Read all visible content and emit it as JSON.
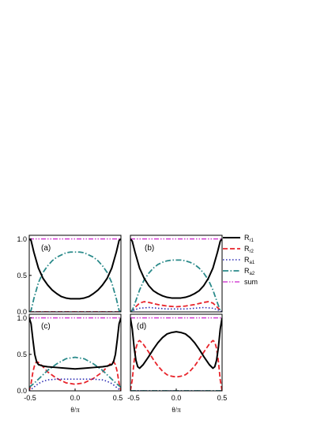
{
  "chart_data": {
    "type": "line",
    "xlabel": "θ/π",
    "x_ticks": [
      "-0.5",
      "0.0",
      "0.5"
    ],
    "y_ticks": [
      "0.0",
      "0.5",
      "1.0"
    ],
    "xlim": [
      -0.5,
      0.5
    ],
    "ylim": [
      0,
      1.05
    ],
    "legend": {
      "placement": "right",
      "entries": [
        {
          "key": "Rr1",
          "main": "R",
          "sub": "r1",
          "color": "#000000",
          "dash": "none",
          "width": 2
        },
        {
          "key": "Rr2",
          "main": "R",
          "sub": "r2",
          "color": "#e8232a",
          "dash": "6,3",
          "width": 1.8
        },
        {
          "key": "Ra1",
          "main": "R",
          "sub": "a1",
          "color": "#2d2db4",
          "dash": "1.5,2.5",
          "width": 1.6
        },
        {
          "key": "Ra2",
          "main": "R",
          "sub": "a2",
          "color": "#2a8a8a",
          "dash": "7,2.5,1.5,2.5",
          "width": 1.8
        },
        {
          "key": "sum",
          "main": "sum",
          "sub": "",
          "color": "#cc22cc",
          "dash": "6,2,1.5,2,1.5,2",
          "width": 1.2
        }
      ]
    },
    "panels": [
      {
        "label": "(a)",
        "series": {
          "Rr1": {
            "x": [
              -0.5,
              -0.48,
              -0.45,
              -0.4,
              -0.35,
              -0.3,
              -0.25,
              -0.2,
              -0.15,
              -0.1,
              -0.05,
              0,
              0.05,
              0.1,
              0.15,
              0.2,
              0.25,
              0.3,
              0.35,
              0.4,
              0.45,
              0.48,
              0.5
            ],
            "y": [
              1.0,
              0.98,
              0.82,
              0.6,
              0.46,
              0.37,
              0.3,
              0.25,
              0.21,
              0.19,
              0.18,
              0.18,
              0.18,
              0.19,
              0.21,
              0.25,
              0.3,
              0.37,
              0.46,
              0.6,
              0.82,
              0.98,
              1.0
            ]
          },
          "Rr2": {
            "x": [
              -0.5,
              0.5
            ],
            "y": [
              0.0,
              0.0
            ]
          },
          "Ra1": {
            "x": [
              -0.5,
              0.5
            ],
            "y": [
              0.0,
              0.0
            ]
          },
          "Ra2": {
            "x": [
              -0.5,
              -0.48,
              -0.45,
              -0.4,
              -0.35,
              -0.3,
              -0.25,
              -0.2,
              -0.15,
              -0.1,
              -0.05,
              0,
              0.05,
              0.1,
              0.15,
              0.2,
              0.25,
              0.3,
              0.35,
              0.4,
              0.45,
              0.48,
              0.5
            ],
            "y": [
              0.0,
              0.02,
              0.18,
              0.4,
              0.54,
              0.63,
              0.7,
              0.75,
              0.78,
              0.81,
              0.82,
              0.82,
              0.82,
              0.81,
              0.78,
              0.75,
              0.7,
              0.63,
              0.54,
              0.4,
              0.18,
              0.02,
              0.0
            ]
          },
          "sum": {
            "x": [
              -0.5,
              0.5
            ],
            "y": [
              1.0,
              1.0
            ]
          }
        }
      },
      {
        "label": "(b)",
        "series": {
          "Rr1": {
            "x": [
              -0.5,
              -0.48,
              -0.45,
              -0.4,
              -0.35,
              -0.3,
              -0.25,
              -0.2,
              -0.15,
              -0.1,
              -0.05,
              0,
              0.05,
              0.1,
              0.15,
              0.2,
              0.25,
              0.3,
              0.35,
              0.4,
              0.45,
              0.48,
              0.5
            ],
            "y": [
              1.0,
              0.97,
              0.82,
              0.6,
              0.46,
              0.36,
              0.29,
              0.25,
              0.22,
              0.2,
              0.19,
              0.19,
              0.19,
              0.2,
              0.22,
              0.25,
              0.29,
              0.36,
              0.46,
              0.6,
              0.82,
              0.97,
              1.0
            ]
          },
          "Rr2": {
            "x": [
              -0.5,
              -0.45,
              -0.4,
              -0.35,
              -0.3,
              -0.2,
              -0.1,
              0,
              0.1,
              0.2,
              0.3,
              0.35,
              0.4,
              0.45,
              0.5
            ],
            "y": [
              0.0,
              0.06,
              0.12,
              0.14,
              0.13,
              0.1,
              0.08,
              0.07,
              0.08,
              0.1,
              0.13,
              0.14,
              0.12,
              0.06,
              0.0
            ]
          },
          "Ra1": {
            "x": [
              -0.5,
              -0.45,
              -0.4,
              -0.3,
              -0.2,
              -0.1,
              0,
              0.1,
              0.2,
              0.3,
              0.4,
              0.45,
              0.5
            ],
            "y": [
              0.0,
              0.03,
              0.05,
              0.06,
              0.05,
              0.04,
              0.04,
              0.04,
              0.05,
              0.06,
              0.05,
              0.03,
              0.0
            ]
          },
          "Ra2": {
            "x": [
              -0.5,
              -0.48,
              -0.45,
              -0.4,
              -0.35,
              -0.3,
              -0.25,
              -0.2,
              -0.15,
              -0.1,
              -0.05,
              0,
              0.05,
              0.1,
              0.15,
              0.2,
              0.25,
              0.3,
              0.35,
              0.4,
              0.45,
              0.48,
              0.5
            ],
            "y": [
              0.0,
              0.02,
              0.12,
              0.3,
              0.44,
              0.53,
              0.6,
              0.65,
              0.68,
              0.7,
              0.71,
              0.71,
              0.71,
              0.7,
              0.68,
              0.65,
              0.6,
              0.53,
              0.44,
              0.3,
              0.12,
              0.02,
              0.0
            ]
          },
          "sum": {
            "x": [
              -0.5,
              0.5
            ],
            "y": [
              1.0,
              1.0
            ]
          }
        }
      },
      {
        "label": "(c)",
        "series": {
          "Rr1": {
            "x": [
              -0.5,
              -0.48,
              -0.46,
              -0.44,
              -0.42,
              -0.4,
              -0.35,
              -0.3,
              -0.2,
              -0.1,
              0,
              0.1,
              0.2,
              0.3,
              0.35,
              0.4,
              0.42,
              0.44,
              0.46,
              0.48,
              0.5
            ],
            "y": [
              1.0,
              0.92,
              0.7,
              0.5,
              0.4,
              0.36,
              0.34,
              0.33,
              0.32,
              0.31,
              0.3,
              0.31,
              0.32,
              0.33,
              0.34,
              0.36,
              0.4,
              0.5,
              0.7,
              0.92,
              1.0
            ]
          },
          "Rr2": {
            "x": [
              -0.5,
              -0.48,
              -0.46,
              -0.44,
              -0.42,
              -0.4,
              -0.35,
              -0.3,
              -0.2,
              -0.1,
              0,
              0.1,
              0.2,
              0.3,
              0.35,
              0.4,
              0.42,
              0.44,
              0.46,
              0.48,
              0.5
            ],
            "y": [
              0.0,
              0.1,
              0.26,
              0.36,
              0.4,
              0.39,
              0.33,
              0.26,
              0.17,
              0.11,
              0.09,
              0.11,
              0.17,
              0.26,
              0.33,
              0.39,
              0.4,
              0.36,
              0.26,
              0.1,
              0.0
            ]
          },
          "Ra1": {
            "x": [
              -0.5,
              -0.45,
              -0.4,
              -0.35,
              -0.3,
              -0.2,
              -0.1,
              0,
              0.1,
              0.2,
              0.3,
              0.35,
              0.4,
              0.45,
              0.5
            ],
            "y": [
              0.0,
              0.05,
              0.1,
              0.13,
              0.15,
              0.16,
              0.16,
              0.16,
              0.16,
              0.16,
              0.15,
              0.13,
              0.1,
              0.05,
              0.0
            ]
          },
          "Ra2": {
            "x": [
              -0.5,
              -0.45,
              -0.4,
              -0.35,
              -0.3,
              -0.2,
              -0.1,
              0,
              0.1,
              0.2,
              0.3,
              0.35,
              0.4,
              0.45,
              0.5
            ],
            "y": [
              0.05,
              0.1,
              0.16,
              0.22,
              0.28,
              0.37,
              0.44,
              0.46,
              0.44,
              0.37,
              0.28,
              0.22,
              0.16,
              0.1,
              0.05
            ]
          },
          "sum": {
            "x": [
              -0.5,
              0.5
            ],
            "y": [
              1.0,
              1.0
            ]
          }
        }
      },
      {
        "label": "(d)",
        "series": {
          "Rr1": {
            "x": [
              -0.5,
              -0.48,
              -0.46,
              -0.44,
              -0.42,
              -0.4,
              -0.36,
              -0.3,
              -0.25,
              -0.2,
              -0.15,
              -0.1,
              -0.05,
              0,
              0.05,
              0.1,
              0.15,
              0.2,
              0.25,
              0.3,
              0.36,
              0.4,
              0.42,
              0.44,
              0.46,
              0.48,
              0.5
            ],
            "y": [
              1.0,
              0.85,
              0.6,
              0.42,
              0.33,
              0.31,
              0.36,
              0.47,
              0.57,
              0.66,
              0.73,
              0.78,
              0.8,
              0.81,
              0.8,
              0.78,
              0.73,
              0.66,
              0.57,
              0.47,
              0.36,
              0.31,
              0.33,
              0.42,
              0.6,
              0.85,
              1.0
            ]
          },
          "Rr2": {
            "x": [
              -0.5,
              -0.48,
              -0.46,
              -0.44,
              -0.42,
              -0.4,
              -0.36,
              -0.3,
              -0.25,
              -0.2,
              -0.15,
              -0.1,
              -0.05,
              0,
              0.05,
              0.1,
              0.15,
              0.2,
              0.25,
              0.3,
              0.36,
              0.4,
              0.42,
              0.44,
              0.46,
              0.48,
              0.5
            ],
            "y": [
              0.0,
              0.15,
              0.4,
              0.58,
              0.67,
              0.69,
              0.64,
              0.53,
              0.43,
              0.34,
              0.27,
              0.22,
              0.2,
              0.19,
              0.2,
              0.22,
              0.27,
              0.34,
              0.43,
              0.53,
              0.64,
              0.69,
              0.67,
              0.58,
              0.4,
              0.15,
              0.0
            ]
          },
          "Ra1": {
            "x": [
              -0.5,
              0.5
            ],
            "y": [
              0.0,
              0.0
            ]
          },
          "Ra2": {
            "x": [
              -0.5,
              0.5
            ],
            "y": [
              0.0,
              0.0
            ]
          },
          "sum": {
            "x": [
              -0.5,
              0.5
            ],
            "y": [
              1.0,
              1.0
            ]
          }
        }
      }
    ]
  }
}
